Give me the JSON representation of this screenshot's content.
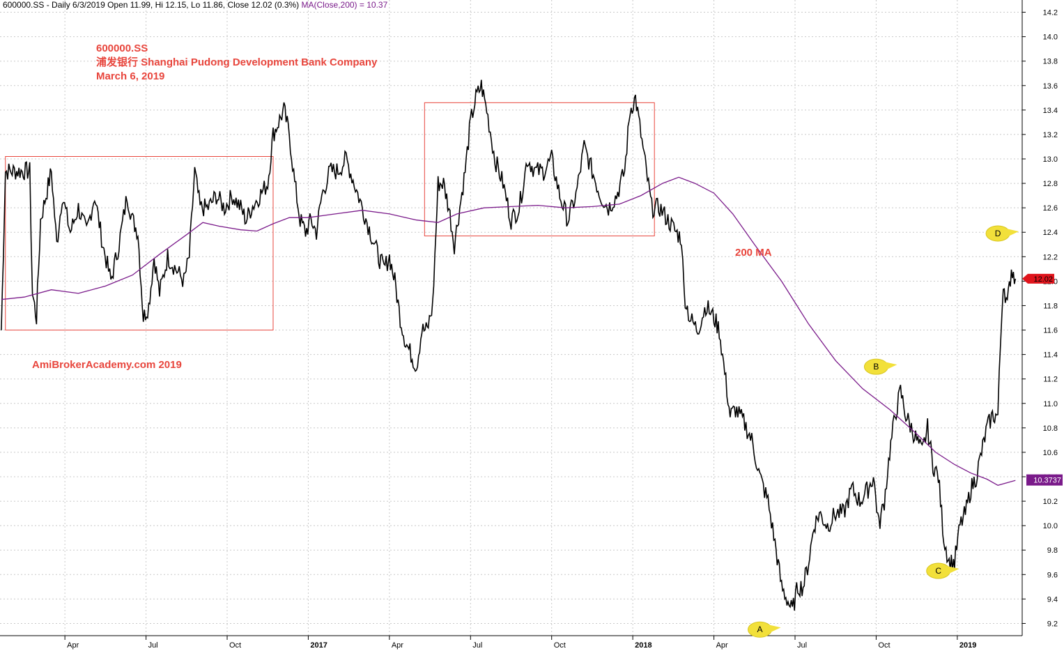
{
  "header": {
    "symbol_info": "600000.SS - Daily 6/3/2019 Open 11.99, Hi 12.15, Lo 11.86, Close 12.02 (0.3%)",
    "ma_info": "MA(Close,200) = 10.37"
  },
  "annotation_title": {
    "line1": "600000.SS",
    "line2": "浦发银行  Shanghai Pudong Development Bank Company",
    "line3": "March 6, 2019"
  },
  "watermark": "AmiBrokerAcademy.com  2019",
  "ma_label": "200 MA",
  "colors": {
    "price": "#000000",
    "ma": "#7a1a8a",
    "annotation": "#e8453c",
    "callout": "#f2e03a",
    "grid": "#c8c8c8"
  },
  "chart_data": {
    "type": "line",
    "y_range": [
      9.1,
      14.3
    ],
    "y_ticks": [
      9.2,
      9.4,
      9.6,
      9.8,
      10.0,
      10.2,
      10.4,
      10.6,
      10.8,
      11.0,
      11.2,
      11.4,
      11.6,
      11.8,
      12.0,
      12.2,
      12.4,
      12.6,
      12.8,
      13.0,
      13.2,
      13.4,
      13.6,
      13.8,
      14.0,
      14.2
    ],
    "x_ticks": [
      {
        "label": "Apr",
        "t": 0.5,
        "year": false
      },
      {
        "label": "Jul",
        "t": 3.5,
        "year": false
      },
      {
        "label": "Oct",
        "t": 6.5,
        "year": false
      },
      {
        "label": "2017",
        "t": 9.5,
        "year": true
      },
      {
        "label": "Apr",
        "t": 12.5,
        "year": false
      },
      {
        "label": "Jul",
        "t": 15.5,
        "year": false
      },
      {
        "label": "Oct",
        "t": 18.5,
        "year": false
      },
      {
        "label": "2018",
        "t": 21.5,
        "year": true
      },
      {
        "label": "Apr",
        "t": 24.5,
        "year": false
      },
      {
        "label": "Jul",
        "t": 27.5,
        "year": false
      },
      {
        "label": "Oct",
        "t": 30.5,
        "year": false
      },
      {
        "label": "2019",
        "t": 33.5,
        "year": true
      }
    ],
    "x_range": [
      -1.9,
      35.9
    ],
    "price_series": {
      "name": "600000.SS",
      "points": [
        [
          -1.85,
          11.6
        ],
        [
          -1.7,
          12.9
        ],
        [
          -1.2,
          12.9
        ],
        [
          -0.8,
          12.9
        ],
        [
          -0.7,
          11.9
        ],
        [
          -0.55,
          11.7
        ],
        [
          -0.4,
          12.5
        ],
        [
          -0.2,
          12.7
        ],
        [
          0.0,
          12.9
        ],
        [
          0.2,
          12.3
        ],
        [
          0.4,
          12.7
        ],
        [
          0.7,
          12.4
        ],
        [
          1.0,
          12.6
        ],
        [
          1.3,
          12.4
        ],
        [
          1.6,
          12.7
        ],
        [
          1.9,
          12.3
        ],
        [
          2.2,
          12.0
        ],
        [
          2.5,
          12.3
        ],
        [
          2.8,
          12.7
        ],
        [
          3.0,
          12.5
        ],
        [
          3.2,
          12.4
        ],
        [
          3.4,
          11.7
        ],
        [
          3.6,
          11.8
        ],
        [
          3.8,
          12.2
        ],
        [
          4.0,
          11.9
        ],
        [
          4.3,
          12.2
        ],
        [
          4.6,
          12.1
        ],
        [
          4.9,
          12.0
        ],
        [
          5.1,
          12.2
        ],
        [
          5.3,
          12.9
        ],
        [
          5.5,
          12.6
        ],
        [
          5.8,
          12.6
        ],
        [
          6.1,
          12.7
        ],
        [
          6.4,
          12.6
        ],
        [
          6.7,
          12.7
        ],
        [
          7.0,
          12.6
        ],
        [
          7.2,
          12.5
        ],
        [
          7.4,
          12.6
        ],
        [
          7.7,
          12.7
        ],
        [
          8.0,
          12.8
        ],
        [
          8.2,
          13.2
        ],
        [
          8.4,
          13.3
        ],
        [
          8.6,
          13.4
        ],
        [
          8.8,
          13.2
        ],
        [
          9.0,
          12.8
        ],
        [
          9.2,
          12.5
        ],
        [
          9.4,
          12.4
        ],
        [
          9.6,
          12.5
        ],
        [
          9.8,
          12.4
        ],
        [
          10.0,
          12.7
        ],
        [
          10.3,
          12.9
        ],
        [
          10.6,
          12.9
        ],
        [
          10.9,
          13.0
        ],
        [
          11.2,
          12.8
        ],
        [
          11.5,
          12.6
        ],
        [
          11.8,
          12.4
        ],
        [
          12.1,
          12.2
        ],
        [
          12.3,
          12.1
        ],
        [
          12.5,
          12.2
        ],
        [
          12.7,
          12.0
        ],
        [
          12.9,
          11.7
        ],
        [
          13.1,
          11.5
        ],
        [
          13.3,
          11.4
        ],
        [
          13.5,
          11.3
        ],
        [
          13.7,
          11.6
        ],
        [
          13.9,
          11.6
        ],
        [
          14.1,
          11.8
        ],
        [
          14.3,
          12.8
        ],
        [
          14.5,
          12.8
        ],
        [
          14.7,
          12.6
        ],
        [
          14.9,
          12.3
        ],
        [
          15.1,
          12.6
        ],
        [
          15.3,
          12.9
        ],
        [
          15.5,
          13.3
        ],
        [
          15.7,
          13.5
        ],
        [
          15.9,
          13.6
        ],
        [
          16.1,
          13.4
        ],
        [
          16.4,
          13.0
        ],
        [
          16.7,
          12.8
        ],
        [
          17.0,
          12.5
        ],
        [
          17.3,
          12.6
        ],
        [
          17.6,
          13.0
        ],
        [
          17.9,
          12.9
        ],
        [
          18.2,
          12.9
        ],
        [
          18.5,
          13.0
        ],
        [
          18.8,
          12.7
        ],
        [
          19.1,
          12.5
        ],
        [
          19.4,
          12.7
        ],
        [
          19.7,
          13.1
        ],
        [
          20.0,
          12.9
        ],
        [
          20.3,
          12.7
        ],
        [
          20.6,
          12.6
        ],
        [
          20.9,
          12.7
        ],
        [
          21.2,
          12.9
        ],
        [
          21.4,
          13.4
        ],
        [
          21.6,
          13.5
        ],
        [
          21.8,
          13.2
        ],
        [
          22.0,
          12.9
        ],
        [
          22.2,
          12.6
        ],
        [
          22.5,
          12.6
        ],
        [
          22.8,
          12.5
        ],
        [
          23.1,
          12.4
        ],
        [
          23.3,
          12.35
        ],
        [
          23.4,
          11.9
        ],
        [
          23.6,
          11.7
        ],
        [
          23.9,
          11.6
        ],
        [
          24.2,
          11.8
        ],
        [
          24.5,
          11.7
        ],
        [
          24.7,
          11.6
        ],
        [
          24.9,
          11.25
        ],
        [
          25.1,
          10.9
        ],
        [
          25.3,
          10.95
        ],
        [
          25.6,
          10.85
        ],
        [
          25.9,
          10.7
        ],
        [
          26.2,
          10.4
        ],
        [
          26.5,
          10.2
        ],
        [
          26.8,
          9.8
        ],
        [
          27.0,
          9.5
        ],
        [
          27.2,
          9.4
        ],
        [
          27.4,
          9.3
        ],
        [
          27.6,
          9.5
        ],
        [
          27.8,
          9.5
        ],
        [
          28.0,
          9.7
        ],
        [
          28.2,
          10.0
        ],
        [
          28.4,
          10.1
        ],
        [
          28.7,
          10.0
        ],
        [
          29.0,
          10.1
        ],
        [
          29.3,
          10.1
        ],
        [
          29.6,
          10.3
        ],
        [
          29.9,
          10.2
        ],
        [
          30.2,
          10.3
        ],
        [
          30.4,
          10.4
        ],
        [
          30.6,
          10.0
        ],
        [
          30.8,
          10.2
        ],
        [
          31.0,
          10.6
        ],
        [
          31.2,
          10.9
        ],
        [
          31.4,
          11.1
        ],
        [
          31.6,
          10.9
        ],
        [
          31.8,
          10.8
        ],
        [
          32.0,
          10.7
        ],
        [
          32.2,
          10.6
        ],
        [
          32.4,
          10.8
        ],
        [
          32.6,
          10.5
        ],
        [
          32.8,
          10.4
        ],
        [
          33.0,
          9.9
        ],
        [
          33.2,
          9.7
        ],
        [
          33.4,
          9.7
        ],
        [
          33.6,
          10.0
        ],
        [
          33.8,
          10.1
        ],
        [
          34.0,
          10.3
        ],
        [
          34.2,
          10.4
        ],
        [
          34.4,
          10.6
        ],
        [
          34.6,
          10.8
        ],
        [
          34.8,
          10.9
        ],
        [
          35.0,
          10.9
        ],
        [
          35.1,
          11.5
        ],
        [
          35.2,
          12.0
        ],
        [
          35.35,
          11.8
        ],
        [
          35.5,
          12.1
        ],
        [
          35.65,
          12.02
        ]
      ]
    },
    "ma_series": {
      "name": "MA(Close,200)",
      "last_value": 10.3737,
      "points": [
        [
          -1.85,
          11.85
        ],
        [
          -1.0,
          11.87
        ],
        [
          0.0,
          11.93
        ],
        [
          1.0,
          11.9
        ],
        [
          2.0,
          11.96
        ],
        [
          3.0,
          12.05
        ],
        [
          4.0,
          12.22
        ],
        [
          5.0,
          12.38
        ],
        [
          5.6,
          12.48
        ],
        [
          6.2,
          12.45
        ],
        [
          7.0,
          12.42
        ],
        [
          7.6,
          12.41
        ],
        [
          8.2,
          12.47
        ],
        [
          8.8,
          12.52
        ],
        [
          9.5,
          12.52
        ],
        [
          10.5,
          12.55
        ],
        [
          11.5,
          12.58
        ],
        [
          12.5,
          12.55
        ],
        [
          13.5,
          12.5
        ],
        [
          14.3,
          12.48
        ],
        [
          15.0,
          12.55
        ],
        [
          16.0,
          12.6
        ],
        [
          17.0,
          12.61
        ],
        [
          18.0,
          12.62
        ],
        [
          19.0,
          12.6
        ],
        [
          20.0,
          12.61
        ],
        [
          21.0,
          12.63
        ],
        [
          21.8,
          12.7
        ],
        [
          22.6,
          12.8
        ],
        [
          23.2,
          12.85
        ],
        [
          23.8,
          12.8
        ],
        [
          24.5,
          12.72
        ],
        [
          25.2,
          12.55
        ],
        [
          26.0,
          12.3
        ],
        [
          27.0,
          12.0
        ],
        [
          28.0,
          11.65
        ],
        [
          29.0,
          11.35
        ],
        [
          30.0,
          11.12
        ],
        [
          31.0,
          10.95
        ],
        [
          32.0,
          10.75
        ],
        [
          32.7,
          10.6
        ],
        [
          33.4,
          10.5
        ],
        [
          34.0,
          10.43
        ],
        [
          34.6,
          10.38
        ],
        [
          35.0,
          10.33
        ],
        [
          35.65,
          10.37
        ]
      ]
    },
    "last_close": 12.02,
    "callouts": [
      {
        "label": "A",
        "t": 26.2,
        "v": 9.15
      },
      {
        "label": "B",
        "t": 30.5,
        "v": 11.3
      },
      {
        "label": "C",
        "t": 32.8,
        "v": 9.63
      },
      {
        "label": "D",
        "t": 35.0,
        "v": 12.39
      }
    ],
    "boxes": [
      {
        "t0": -1.7,
        "t1": 8.2,
        "v0": 11.6,
        "v1": 13.02
      },
      {
        "t0": 13.8,
        "t1": 22.3,
        "v0": 12.37,
        "v1": 13.46
      }
    ]
  }
}
